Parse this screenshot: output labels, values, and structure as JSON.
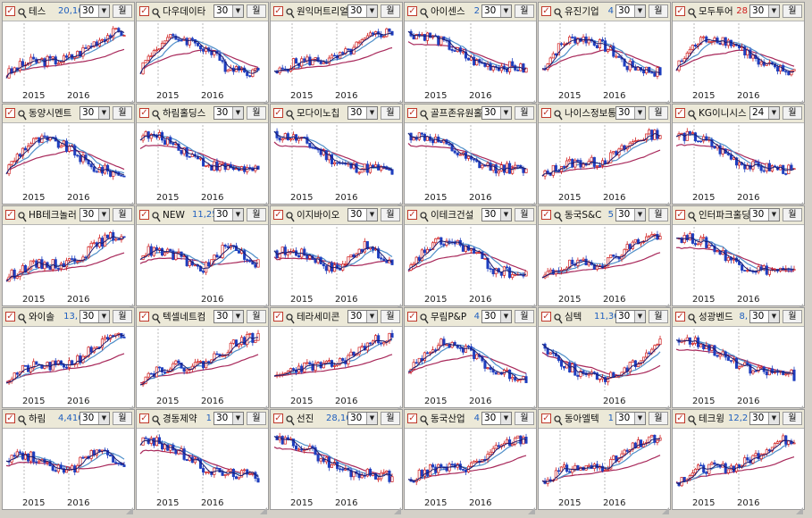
{
  "period_dropdown_icon": "chevron-down-icon",
  "checkbox_icon": "checkbox-checked-icon",
  "search_icon": "magnifier-icon",
  "unit_button_label": "월",
  "colors": {
    "up": "#d11d1d",
    "down": "#1f3fbf",
    "ma_short": "#1a1a6e",
    "ma_mid": "#4f8fc9",
    "ma_long": "#a8285a",
    "price_text": "#1f5fbf"
  },
  "panels": [
    {
      "name": "테스",
      "price": "20,10",
      "period": "30",
      "years": [
        "2015",
        "2016"
      ],
      "trend": "up"
    },
    {
      "name": "다우데이타",
      "price": "",
      "period": "30",
      "years": [
        "2015",
        "2016"
      ],
      "trend": "hump"
    },
    {
      "name": "원익머트리얼",
      "price": "",
      "period": "30",
      "years": [
        "2015",
        "2016"
      ],
      "trend": "up"
    },
    {
      "name": "아이센스",
      "price": "2",
      "period": "30",
      "years": [
        "2015",
        "2016"
      ],
      "trend": "down"
    },
    {
      "name": "유진기업",
      "price": "4",
      "period": "30",
      "years": [
        "2015",
        "2016"
      ],
      "trend": "hump"
    },
    {
      "name": "모두투어",
      "price": "28",
      "period": "30",
      "years": [
        "2015",
        "2016"
      ],
      "trend": "hump",
      "price_up": true
    },
    {
      "name": "동양시멘트",
      "price": "",
      "period": "30",
      "years": [
        "2015",
        "2016"
      ],
      "trend": "hump"
    },
    {
      "name": "하림홀딩스",
      "price": "",
      "period": "30",
      "years": [
        "2015",
        "2016"
      ],
      "trend": "down"
    },
    {
      "name": "모다이노칩",
      "price": "",
      "period": "30",
      "years": [
        "2015",
        "2016"
      ],
      "trend": "down"
    },
    {
      "name": "골프존유원홀",
      "price": "",
      "period": "30",
      "years": [
        "2015",
        "2016"
      ],
      "trend": "down"
    },
    {
      "name": "나이스정보통",
      "price": "",
      "period": "30",
      "years": [
        "2015",
        "2016"
      ],
      "trend": "up"
    },
    {
      "name": "KG이니시스",
      "price": "",
      "period": "24",
      "years": [
        "2015",
        "2016"
      ],
      "trend": "down"
    },
    {
      "name": "HB테크놀러",
      "price": "",
      "period": "30",
      "years": [
        "2015",
        "2016"
      ],
      "trend": "up"
    },
    {
      "name": "NEW",
      "price": "11,25",
      "period": "30",
      "years": [
        "2016"
      ],
      "trend": "flat"
    },
    {
      "name": "이지바이오",
      "price": "",
      "period": "30",
      "years": [
        "2015",
        "2016"
      ],
      "trend": "flat"
    },
    {
      "name": "이테크건설",
      "price": "",
      "period": "30",
      "years": [
        "2015",
        "2016"
      ],
      "trend": "hump"
    },
    {
      "name": "동국S&C",
      "price": "5",
      "period": "30",
      "years": [
        "2015",
        "2016"
      ],
      "trend": "up"
    },
    {
      "name": "인터파크홀딩",
      "price": "",
      "period": "30",
      "years": [
        "2015",
        "2016"
      ],
      "trend": "down"
    },
    {
      "name": "와이솔",
      "price": "13,",
      "period": "30",
      "years": [
        "2015",
        "2016"
      ],
      "trend": "up"
    },
    {
      "name": "텍셀네트컴",
      "price": "",
      "period": "30",
      "years": [
        "2015",
        "2016"
      ],
      "trend": "up"
    },
    {
      "name": "테라세미콘",
      "price": "",
      "period": "30",
      "years": [
        "2015",
        "2016"
      ],
      "trend": "up"
    },
    {
      "name": "무림P&P",
      "price": "4",
      "period": "30",
      "years": [
        "2015",
        "2016"
      ],
      "trend": "hump"
    },
    {
      "name": "심텍",
      "price": "11,30",
      "period": "30",
      "years": [
        "2016"
      ],
      "trend": "vshape"
    },
    {
      "name": "성광벤드",
      "price": "8,",
      "period": "30",
      "years": [
        "2015",
        "2016"
      ],
      "trend": "down"
    },
    {
      "name": "하림",
      "price": "4,410",
      "period": "30",
      "years": [
        "2015",
        "2016"
      ],
      "trend": "flat"
    },
    {
      "name": "경동제약",
      "price": "1",
      "period": "30",
      "years": [
        "2015",
        "2016"
      ],
      "trend": "down"
    },
    {
      "name": "선진",
      "price": "28,10",
      "period": "30",
      "years": [
        "2015",
        "2016"
      ],
      "trend": "down"
    },
    {
      "name": "동국산업",
      "price": "4",
      "period": "30",
      "years": [
        "2015",
        "2016"
      ],
      "trend": "up"
    },
    {
      "name": "동아엘텍",
      "price": "1",
      "period": "30",
      "years": [
        "2015",
        "2016"
      ],
      "trend": "up"
    },
    {
      "name": "테크윙",
      "price": "12,2",
      "period": "30",
      "years": [
        "2015",
        "2016"
      ],
      "trend": "up"
    }
  ]
}
